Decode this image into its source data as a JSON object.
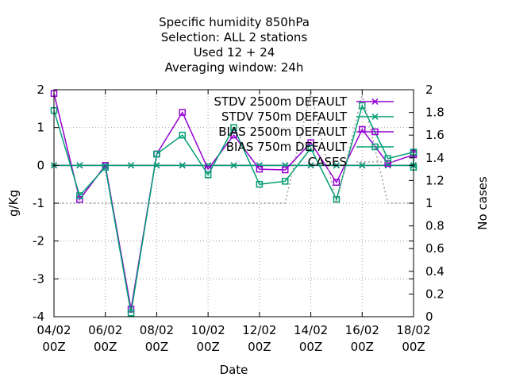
{
  "chart_data": {
    "type": "line",
    "title": [
      "Specific humidity 850hPa",
      "Selection: ALL      2 stations",
      "Used  12 + 24",
      "Averaging window: 24h"
    ],
    "xlabel": "Date",
    "ylabel": "g/Kg",
    "y2label": "No cases",
    "x_ticks": [
      {
        "line1": "04/02",
        "line2": "00Z"
      },
      {
        "line1": "06/02",
        "line2": "00Z"
      },
      {
        "line1": "08/02",
        "line2": "00Z"
      },
      {
        "line1": "10/02",
        "line2": "00Z"
      },
      {
        "line1": "12/02",
        "line2": "00Z"
      },
      {
        "line1": "14/02",
        "line2": "00Z"
      },
      {
        "line1": "16/02",
        "line2": "00Z"
      },
      {
        "line1": "18/02",
        "line2": "00Z"
      }
    ],
    "xlim": [
      0,
      14
    ],
    "ylim": [
      -4,
      2
    ],
    "y2lim": [
      0,
      2
    ],
    "y_ticks": [
      "2",
      "1",
      "0",
      "-1",
      "-2",
      "-3",
      "-4"
    ],
    "y2_ticks": [
      "2",
      "1.8",
      "1.6",
      "1.4",
      "1.2",
      "1",
      "0.8",
      "0.6",
      "0.4",
      "0.2",
      "0"
    ],
    "grid": true,
    "legend_position": "top-right",
    "x": [
      0,
      1,
      2,
      3,
      4,
      5,
      6,
      7,
      8,
      9,
      10,
      11,
      12,
      13,
      14
    ],
    "series": [
      {
        "name": "STDV 2500m DEFAULT",
        "axis": "y1",
        "color": "#9400d3",
        "marker": "star",
        "values": [
          0,
          0,
          0,
          0,
          0,
          0,
          0,
          0,
          0,
          0,
          0,
          0,
          0,
          0,
          0
        ]
      },
      {
        "name": "STDV 750m DEFAULT",
        "axis": "y1",
        "color": "#009e73",
        "marker": "star",
        "values": [
          0,
          0,
          0,
          0,
          0,
          0,
          0,
          0,
          0,
          0,
          0,
          0,
          0,
          0,
          0
        ]
      },
      {
        "name": "BIAS 2500m DEFAULT",
        "axis": "y1",
        "color": "#9400d3",
        "marker": "square",
        "values": [
          1.9,
          -0.9,
          0,
          -3.8,
          0.3,
          1.4,
          -0.1,
          0.8,
          -0.1,
          -0.12,
          0.6,
          -0.45,
          0.95,
          0.05,
          0.28,
          0.32
        ]
      },
      {
        "name": "BIAS 750m DEFAULT",
        "axis": "y1",
        "color": "#009e73",
        "marker": "square",
        "values": [
          1.45,
          -0.8,
          -0.05,
          -3.9,
          0.3,
          0.8,
          -0.25,
          1.0,
          -0.5,
          -0.42,
          0.45,
          -0.9,
          1.58,
          0.18,
          0.35,
          -0.05
        ]
      },
      {
        "name": "CASES",
        "axis": "y2",
        "color": "#a0a0a0",
        "marker": "none",
        "values": [
          1,
          1,
          1,
          1,
          1,
          1,
          1,
          1,
          1,
          1,
          1.98,
          1,
          1.96,
          1,
          1,
          1
        ]
      }
    ],
    "x_values": [
      0,
      1,
      2,
      3,
      4,
      5,
      6,
      7,
      8,
      9,
      10,
      11,
      12,
      13,
      14,
      14
    ],
    "legend": [
      "STDV 2500m DEFAULT",
      "STDV 750m DEFAULT",
      "BIAS 2500m DEFAULT",
      "BIAS 750m DEFAULT",
      "CASES"
    ]
  }
}
